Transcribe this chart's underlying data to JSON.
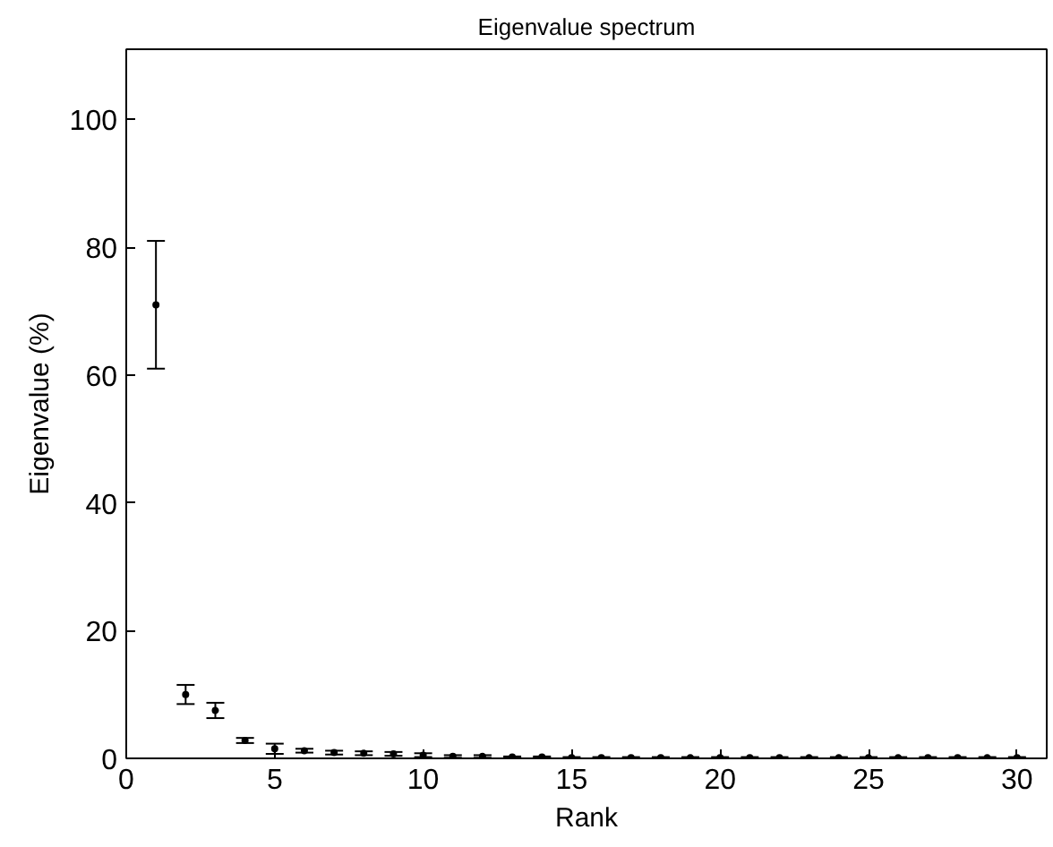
{
  "chart_data": {
    "type": "scatter",
    "title": "Eigenvalue spectrum",
    "xlabel": "Rank",
    "ylabel": "Eigenvalue (%)",
    "x": [
      1,
      2,
      3,
      4,
      5,
      6,
      7,
      8,
      9,
      10,
      11,
      12,
      13,
      14,
      15,
      16,
      17,
      18,
      19,
      20,
      21,
      22,
      23,
      24,
      25,
      26,
      27,
      28,
      29,
      30
    ],
    "series": [
      {
        "color": "#000000",
        "values": [
          71,
          10,
          7.5,
          2.8,
          1.5,
          1.2,
          0.9,
          0.8,
          0.7,
          0.5,
          0.3,
          0.3,
          0.2,
          0.2,
          0.1,
          0.1,
          0.1,
          0.1,
          0.1,
          0.1,
          0.1,
          0.1,
          0.1,
          0.1,
          0.1,
          0.1,
          0.1,
          0.1,
          0.1,
          0.1
        ],
        "errors": [
          10,
          1.5,
          1.2,
          0.4,
          0.8,
          0.3,
          0.3,
          0.3,
          0.3,
          0.3,
          0.2,
          0.2,
          0.1,
          0.1,
          0.1,
          0.1,
          0.1,
          0.1,
          0.1,
          0.1,
          0.1,
          0.1,
          0.1,
          0.1,
          0.1,
          0.1,
          0.1,
          0.1,
          0.1,
          0.1
        ]
      }
    ],
    "xlim": [
      0,
      31
    ],
    "ylim": [
      0,
      111
    ],
    "xticks": [
      0,
      5,
      10,
      15,
      20,
      25,
      30
    ],
    "yticks": [
      0,
      20,
      40,
      60,
      80,
      100
    ],
    "grid": false,
    "marker": "circle"
  }
}
